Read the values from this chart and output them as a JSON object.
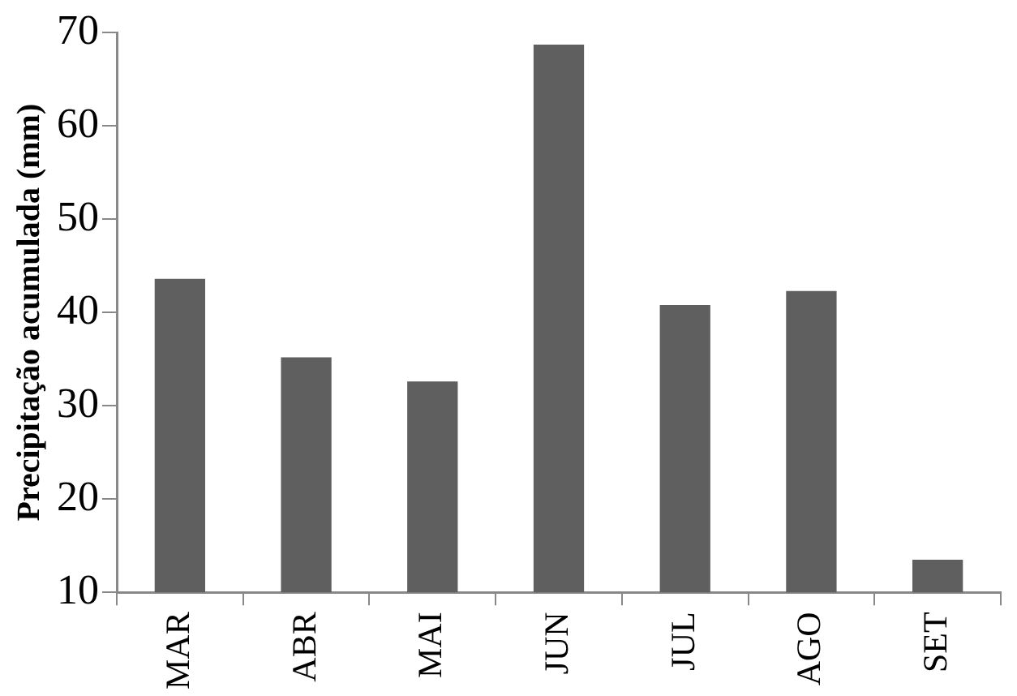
{
  "chart_data": {
    "type": "bar",
    "ylabel": "Precipitação acumulada (mm)",
    "categories": [
      "MAR",
      "ABR",
      "MAI",
      "JUN",
      "JUL",
      "AGO",
      "SET"
    ],
    "values": [
      43.6,
      35.2,
      32.6,
      68.7,
      40.8,
      42.3,
      13.5
    ],
    "color": "#5f5f5f",
    "ylim": [
      10,
      70
    ],
    "yticks": [
      10,
      20,
      30,
      40,
      50,
      60,
      70
    ],
    "grid": false,
    "legend": false
  }
}
